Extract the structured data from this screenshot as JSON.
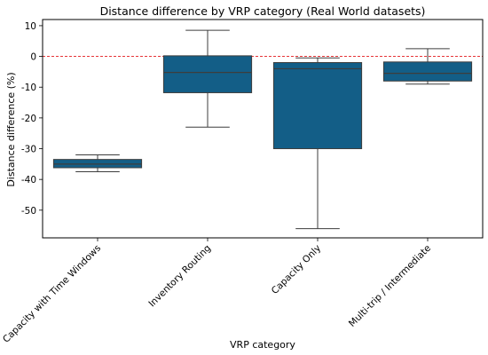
{
  "chart_data": {
    "type": "box",
    "title": "Distance difference by VRP category (Real World datasets)",
    "xlabel": "VRP category",
    "ylabel": "Distance difference (%)",
    "ylim": [
      -59,
      12
    ],
    "yticks": [
      10,
      0,
      -10,
      -20,
      -30,
      -40,
      -50
    ],
    "reference_line": {
      "y": 0,
      "style": "dashed",
      "color": "#e31a1c"
    },
    "grid": false,
    "box_color": "#135e87",
    "categories": [
      "Capacity with Time Windows",
      "Inventory Routing",
      "Capacity Only",
      "Multi-trip / Intermediate"
    ],
    "boxes": [
      {
        "whisker_low": -37.5,
        "q1": -36.2,
        "median": -35.0,
        "q3": -33.5,
        "whisker_high": -32.0
      },
      {
        "whisker_low": -23.0,
        "q1": -11.8,
        "median": -5.2,
        "q3": 0.2,
        "whisker_high": 8.5
      },
      {
        "whisker_low": -56.0,
        "q1": -30.0,
        "median": -4.0,
        "q3": -2.0,
        "whisker_high": -0.5
      },
      {
        "whisker_low": -9.0,
        "q1": -8.0,
        "median": -5.5,
        "q3": -1.8,
        "whisker_high": 2.5
      }
    ]
  }
}
